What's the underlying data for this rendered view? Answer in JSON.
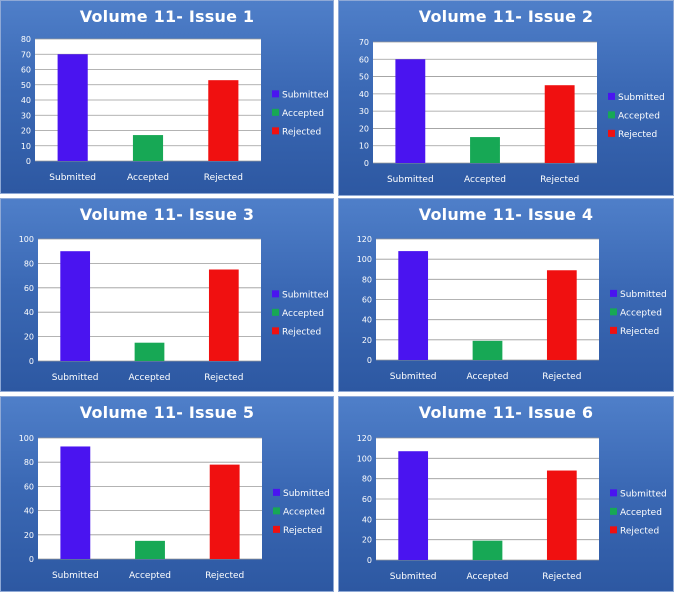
{
  "colors": {
    "submitted": "#4a14f0",
    "accepted": "#17a855",
    "rejected": "#f01010",
    "panel_bg": "#3b69b5",
    "plot_bg": "#ffffff",
    "grid": "#9a9a9a"
  },
  "chart_data": [
    {
      "type": "bar",
      "title": "Volume 11- Issue 1",
      "categories": [
        "Submitted",
        "Accepted",
        "Rejected"
      ],
      "values": [
        70,
        17,
        53
      ],
      "ylim": [
        0,
        80
      ],
      "yticks": [
        0,
        10,
        20,
        30,
        40,
        50,
        60,
        70,
        80
      ],
      "grid": true,
      "legend": [
        "Submitted",
        "Accepted",
        "Rejected"
      ],
      "legend_position": "right"
    },
    {
      "type": "bar",
      "title": "Volume 11- Issue 2",
      "categories": [
        "Submitted",
        "Accepted",
        "Rejected"
      ],
      "values": [
        60,
        15,
        45
      ],
      "ylim": [
        0,
        70
      ],
      "yticks": [
        0,
        10,
        20,
        30,
        40,
        50,
        60,
        70
      ],
      "grid": true,
      "legend": [
        "Submitted",
        "Accepted",
        "Rejected"
      ],
      "legend_position": "right"
    },
    {
      "type": "bar",
      "title": "Volume 11- Issue 3",
      "categories": [
        "Submitted",
        "Accepted",
        "Rejected"
      ],
      "values": [
        90,
        15,
        75
      ],
      "ylim": [
        0,
        100
      ],
      "yticks": [
        0,
        20,
        40,
        60,
        80,
        100
      ],
      "grid": true,
      "legend": [
        "Submitted",
        "Accepted",
        "Rejected"
      ],
      "legend_position": "right"
    },
    {
      "type": "bar",
      "title": "Volume 11- Issue 4",
      "categories": [
        "Submitted",
        "Accepted",
        "Rejected"
      ],
      "values": [
        108,
        19,
        89
      ],
      "ylim": [
        0,
        120
      ],
      "yticks": [
        0,
        20,
        40,
        60,
        80,
        100,
        120
      ],
      "grid": true,
      "legend": [
        "Submitted",
        "Accepted",
        "Rejected"
      ],
      "legend_position": "right"
    },
    {
      "type": "bar",
      "title": "Volume 11- Issue 5",
      "categories": [
        "Submitted",
        "Accepted",
        "Rejected"
      ],
      "values": [
        93,
        15,
        78
      ],
      "ylim": [
        0,
        100
      ],
      "yticks": [
        0,
        20,
        40,
        60,
        80,
        100
      ],
      "grid": true,
      "legend": [
        "Submitted",
        "Accepted",
        "Rejected"
      ],
      "legend_position": "right"
    },
    {
      "type": "bar",
      "title": "Volume 11- Issue 6",
      "categories": [
        "Submitted",
        "Accepted",
        "Rejected"
      ],
      "values": [
        107,
        19,
        88
      ],
      "ylim": [
        0,
        120
      ],
      "yticks": [
        0,
        20,
        40,
        60,
        80,
        100,
        120
      ],
      "grid": true,
      "legend": [
        "Submitted",
        "Accepted",
        "Rejected"
      ],
      "legend_position": "right"
    }
  ]
}
